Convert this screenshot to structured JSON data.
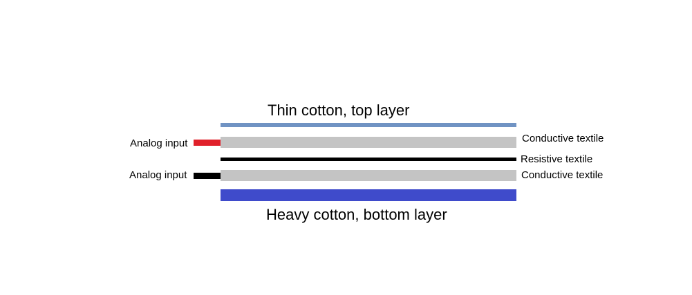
{
  "diagram": {
    "top_title": "Thin cotton, top layer",
    "bottom_title": "Heavy cotton, bottom layer",
    "labels": {
      "analog_input_top": "Analog input",
      "analog_input_bottom": "Analog input",
      "conductive_top": "Conductive textile",
      "resistive": "Resistive textile",
      "conductive_bottom": "Conductive textile"
    },
    "colors": {
      "thin_cotton": "#7093c3",
      "conductive_textile": "#c4c4c4",
      "resistive_textile": "#000000",
      "heavy_cotton": "#3f4bcb",
      "analog_input_top_lead": "#e0202a",
      "analog_input_bottom_lead": "#000000"
    }
  }
}
